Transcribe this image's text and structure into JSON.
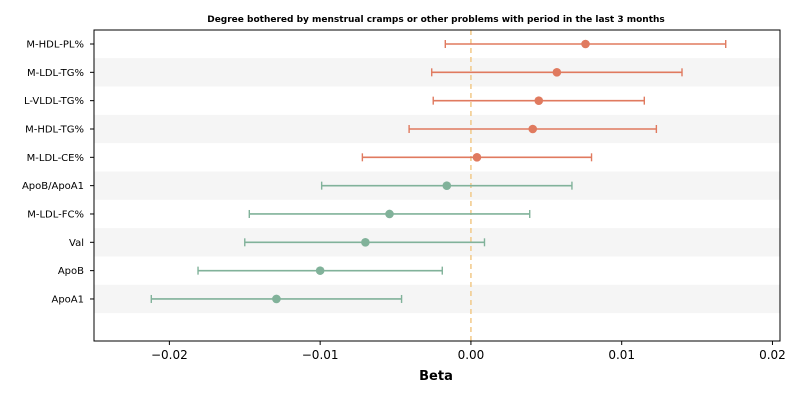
{
  "chart_data": {
    "type": "forest",
    "title": "Degree bothered by menstrual cramps or other problems with period in the last 3 months",
    "xlabel": "Beta",
    "xlim": [
      -0.025,
      0.0205
    ],
    "xticks": [
      -0.02,
      -0.01,
      0.0,
      0.01,
      0.02
    ],
    "xtick_labels": [
      "−0.02",
      "−0.01",
      "0.00",
      "0.01",
      "0.02"
    ],
    "reference_line": 0.0,
    "colors": {
      "positive": "#E07A5F",
      "negative": "#81B29A",
      "reference": "#F2CC8F",
      "band": "#F5F5F5"
    },
    "rows": [
      {
        "label": "M-HDL-PL%",
        "beta": 0.0076,
        "lower": -0.0017,
        "upper": 0.0169
      },
      {
        "label": "M-LDL-TG%",
        "beta": 0.0057,
        "lower": -0.0026,
        "upper": 0.014
      },
      {
        "label": "L-VLDL-TG%",
        "beta": 0.0045,
        "lower": -0.0025,
        "upper": 0.0115
      },
      {
        "label": "M-HDL-TG%",
        "beta": 0.0041,
        "lower": -0.0041,
        "upper": 0.0123
      },
      {
        "label": "M-LDL-CE%",
        "beta": 0.0004,
        "lower": -0.0072,
        "upper": 0.008
      },
      {
        "label": "ApoB/ApoA1",
        "beta": -0.0016,
        "lower": -0.0099,
        "upper": 0.0067
      },
      {
        "label": "M-LDL-FC%",
        "beta": -0.0054,
        "lower": -0.0147,
        "upper": 0.0039
      },
      {
        "label": "Val",
        "beta": -0.007,
        "lower": -0.015,
        "upper": 0.0009
      },
      {
        "label": "ApoB",
        "beta": -0.01,
        "lower": -0.0181,
        "upper": -0.0019
      },
      {
        "label": "ApoA1",
        "beta": -0.0129,
        "lower": -0.0212,
        "upper": -0.0046
      }
    ]
  }
}
